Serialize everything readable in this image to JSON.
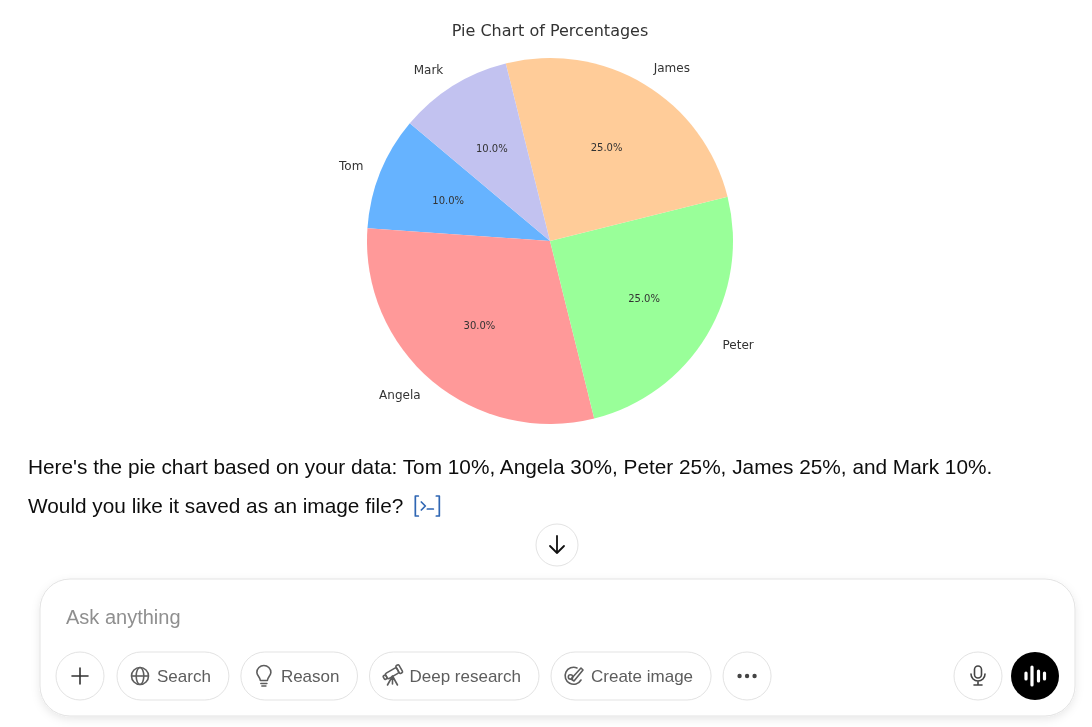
{
  "chart_data": [
    {
      "type": "pie",
      "title": "Pie Chart of Percentages",
      "categories": [
        "Tom",
        "Angela",
        "Peter",
        "James",
        "Mark"
      ],
      "values": [
        10,
        30,
        25,
        25,
        10
      ],
      "colors": [
        "#66b3ff",
        "#ff9999",
        "#99ff99",
        "#ffcc99",
        "#c2c2f0"
      ],
      "value_labels": [
        "10.0%",
        "30.0%",
        "25.0%",
        "25.0%",
        "10.0%"
      ],
      "annotations": [
        "Here's the pie chart based on your data: Tom 10%, Angela 30%, Peter 25%, James 25%, and Mark 10%.",
        "Would you like it saved as an image file?"
      ]
    },
    {
      "type": "other",
      "annotations": [
        "Ask anything",
        "Search",
        "Reason",
        "Deep research",
        "Create image"
      ]
    }
  ]
}
